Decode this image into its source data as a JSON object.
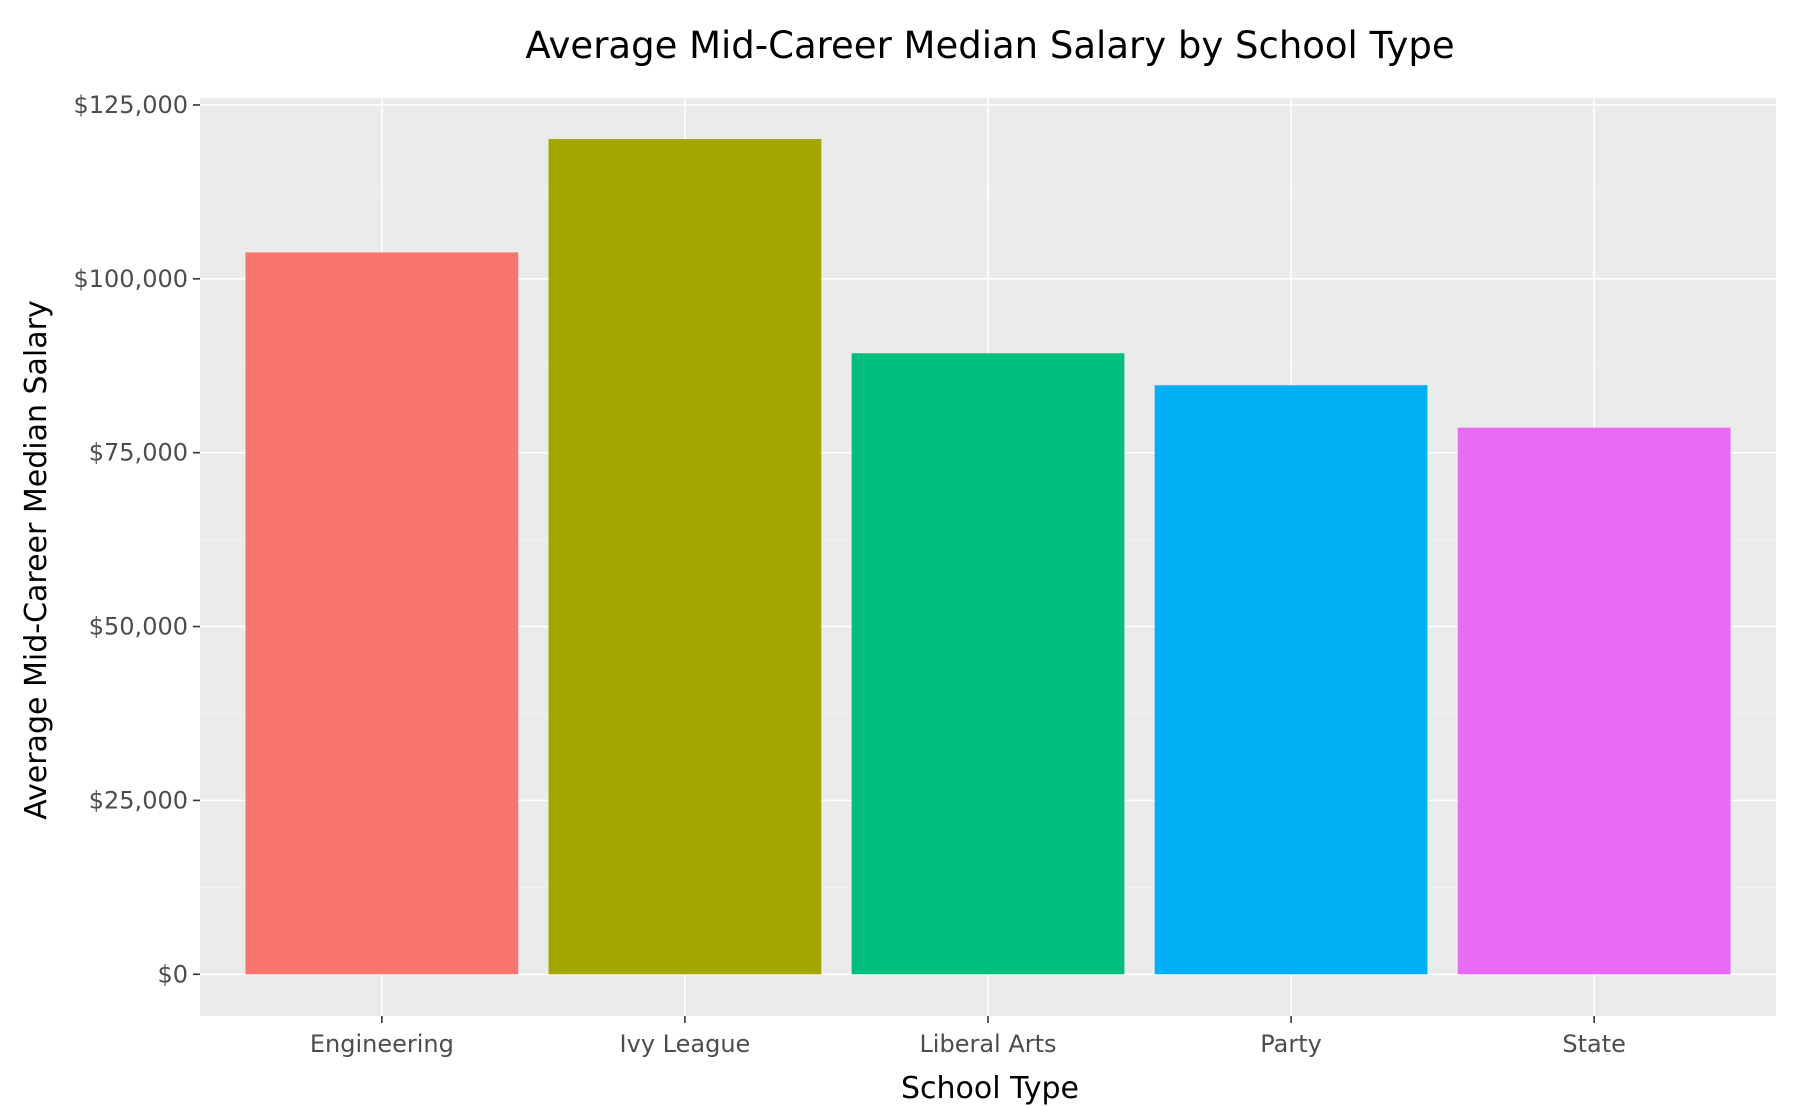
{
  "chart_data": {
    "type": "bar",
    "title": "Average Mid-Career Median Salary by School Type",
    "xlabel": "School Type",
    "ylabel": "Average Mid-Career Median Salary",
    "categories": [
      "Engineering",
      "Ivy League",
      "Liberal Arts",
      "Party",
      "State"
    ],
    "values": [
      103800,
      120100,
      89300,
      84700,
      78600
    ],
    "colors": [
      "#F8766D",
      "#A3A500",
      "#00BF7D",
      "#00B0F6",
      "#E76BF3"
    ],
    "y_ticks": [
      0,
      25000,
      50000,
      75000,
      100000,
      125000
    ],
    "y_tick_labels": [
      "$0",
      "$25,000",
      "$50,000",
      "$75,000",
      "$100,000",
      "$125,000"
    ],
    "ylim": [
      -6000,
      126000
    ],
    "panel_background": "#EBEBEB",
    "grid": true,
    "legend": "none"
  }
}
